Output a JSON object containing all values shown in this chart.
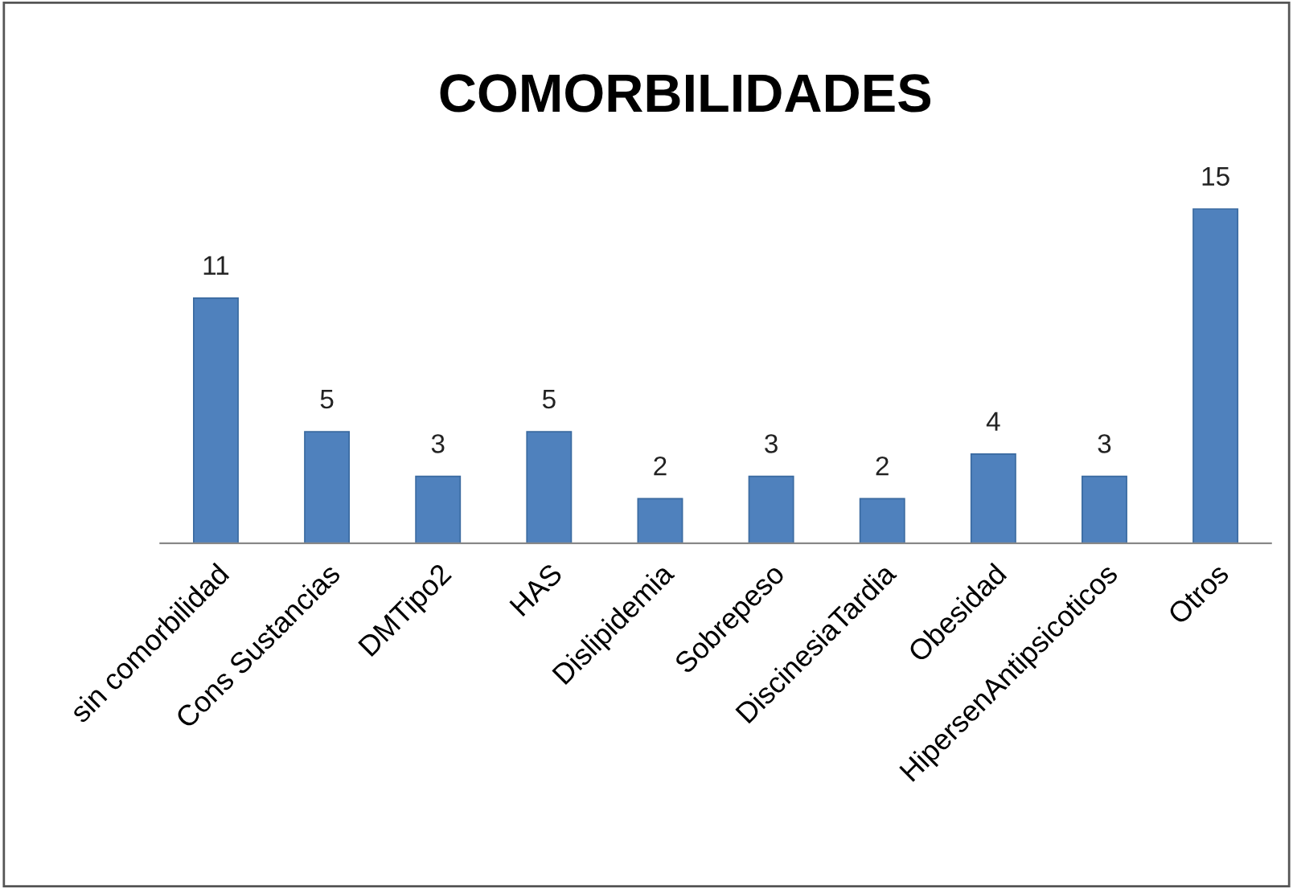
{
  "chart_data": {
    "type": "bar",
    "title": "COMORBILIDADES",
    "categories": [
      "sin comorbilidad",
      "Cons Sustancias",
      "DMTipo2",
      "HAS",
      "Dislipidemia",
      "Sobrepeso",
      "DiscinesiaTardia",
      "Obesidad",
      "HipersenAntipsicoticos",
      "Otros"
    ],
    "values": [
      11,
      5,
      3,
      5,
      2,
      3,
      2,
      4,
      3,
      15
    ],
    "color": "#4f81bd",
    "data_labels": true,
    "grid": false,
    "legend": false
  }
}
